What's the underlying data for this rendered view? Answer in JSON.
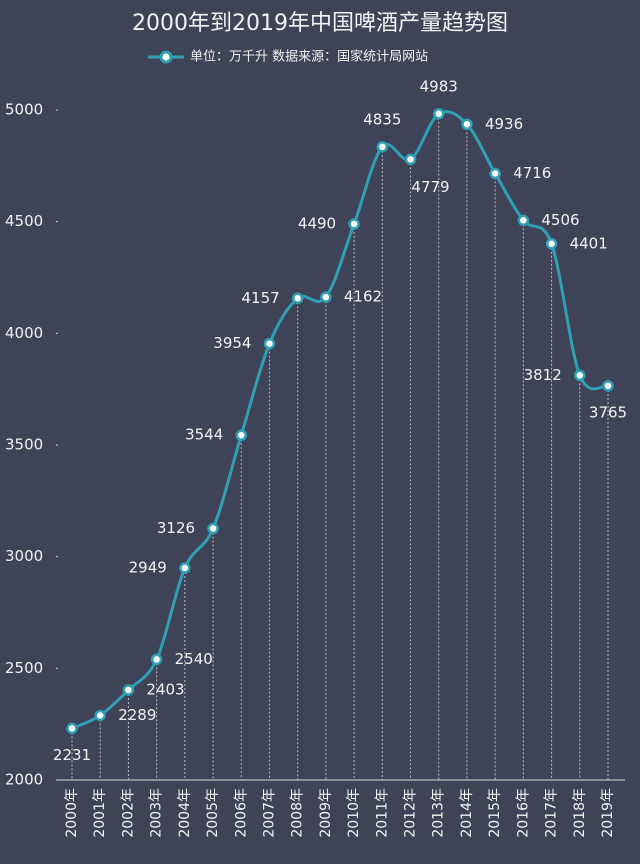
{
  "chart_data": {
    "type": "line",
    "title": "2000年到2019年中国啤酒产量趋势图",
    "categories": [
      "2000年",
      "2001年",
      "2002年",
      "2003年",
      "2004年",
      "2005年",
      "2006年",
      "2007年",
      "2008年",
      "2009年",
      "2010年",
      "2011年",
      "2012年",
      "2013年",
      "2014年",
      "2015年",
      "2016年",
      "2017年",
      "2018年",
      "2019年"
    ],
    "series": [
      {
        "name": "单位：万千升  数据来源：国家统计局网站",
        "color": "#2f9fb4",
        "values": [
          2231,
          2289,
          2403,
          2540,
          2949,
          3126,
          3544,
          3954,
          4157,
          4162,
          4490,
          4835,
          4779,
          4983,
          4936,
          4716,
          4506,
          4401,
          3812,
          3765
        ]
      }
    ],
    "ylim": [
      2000,
      5000
    ],
    "yticks": [
      2000,
      2500,
      3000,
      3500,
      4000,
      4500,
      5000
    ],
    "grid": false,
    "smooth": true
  }
}
